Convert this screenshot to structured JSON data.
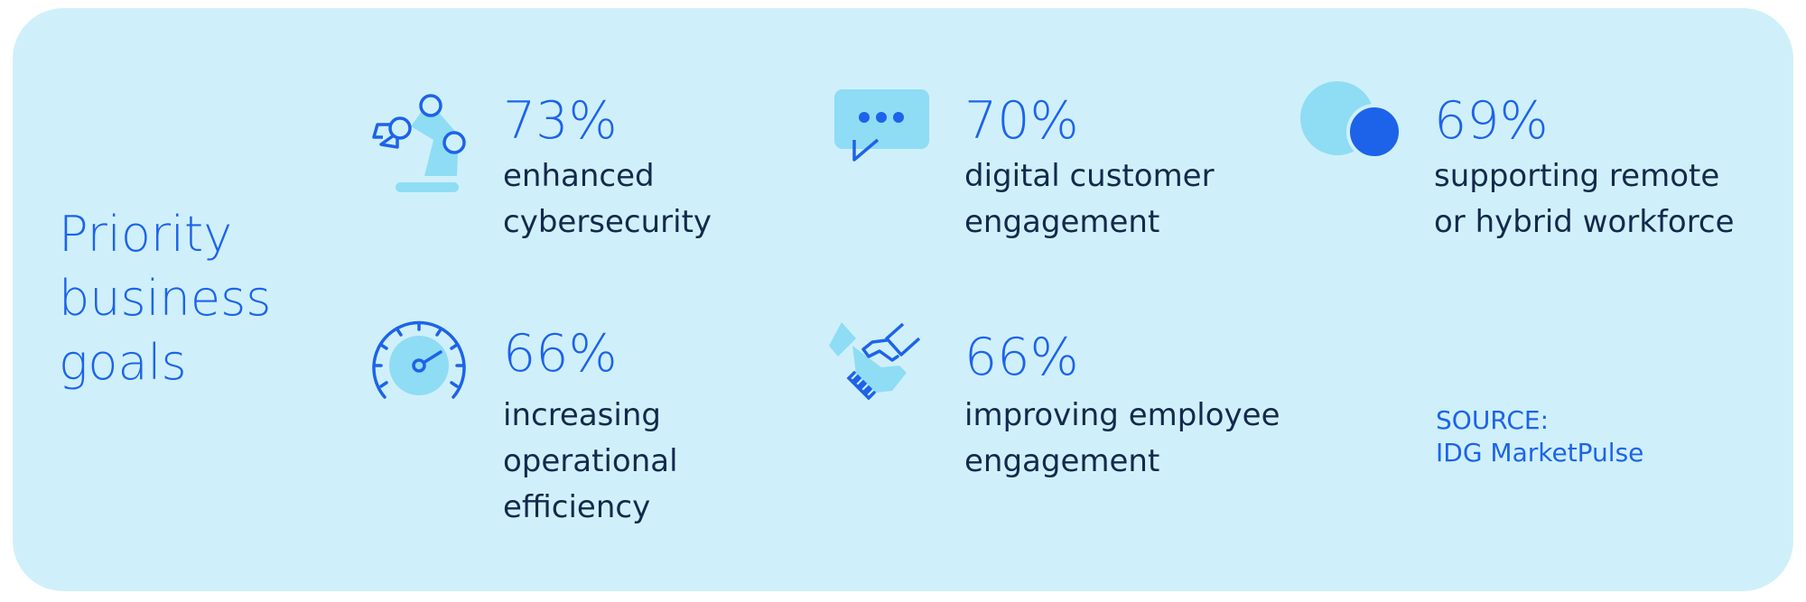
{
  "headline": {
    "lines": [
      "Priority",
      "business",
      "goals"
    ]
  },
  "stats": [
    {
      "icon": "robotic-arm-icon",
      "percent": "73%",
      "lines": [
        "enhanced",
        "cybersecurity"
      ]
    },
    {
      "icon": "chat-bubble-icon",
      "percent": "70%",
      "lines": [
        "digital customer",
        "engagement"
      ]
    },
    {
      "icon": "overlapping-circles-icon",
      "percent": "69%",
      "lines": [
        "supporting remote",
        "or hybrid workforce"
      ]
    },
    {
      "icon": "speedometer-icon",
      "percent": "66%",
      "lines": [
        "increasing",
        "operational",
        "efficiency"
      ]
    },
    {
      "icon": "handshake-icon",
      "percent": "66%",
      "lines": [
        "improving employee",
        "engagement"
      ]
    }
  ],
  "source": {
    "label": "SOURCE:",
    "name": "IDG MarketPulse"
  },
  "colors": {
    "background": "#cff0fa",
    "accent": "#1d63ea",
    "light_accent": "#8fdcf5",
    "text": "#13294b"
  }
}
